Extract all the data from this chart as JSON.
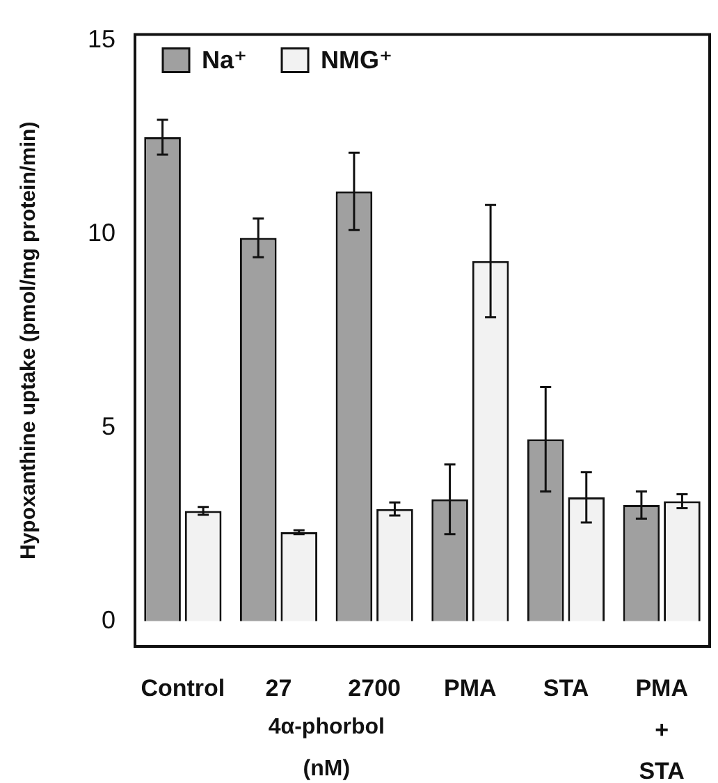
{
  "chart_data": {
    "type": "bar",
    "ylabel": "Hypoxanthine uptake (pmol/mg protein/min)",
    "categories": [
      "Control",
      "27",
      "2700",
      "PMA",
      "STA",
      "PMA + STA"
    ],
    "series": [
      {
        "name": "Na⁺",
        "color": "#a0a0a0",
        "values": [
          12.5,
          9.9,
          11.1,
          3.15,
          4.7,
          3.0
        ],
        "errors": [
          0.45,
          0.5,
          1.0,
          0.9,
          1.35,
          0.35
        ]
      },
      {
        "name": "NMG⁺",
        "color": "#f2f2f2",
        "values": [
          2.85,
          2.3,
          2.9,
          9.3,
          3.2,
          3.1
        ],
        "errors": [
          0.1,
          0.05,
          0.17,
          1.45,
          0.65,
          0.18
        ]
      }
    ],
    "ylim": [
      -0.65,
      15.15
    ],
    "yticks": [
      0,
      5,
      10,
      15
    ],
    "grid": false,
    "legend": "top left",
    "annotations": [
      "4α-phorbol (nM)"
    ]
  }
}
